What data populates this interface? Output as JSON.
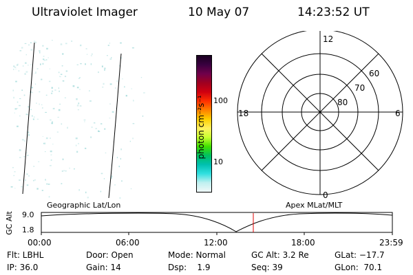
{
  "header": {
    "instrument": "Ultraviolet Imager",
    "date": "10 May 07",
    "time": "14:23:52 UT"
  },
  "colorbar": {
    "label": "photon cm⁻²s⁻¹",
    "ticks": [
      "100",
      "10"
    ],
    "colors": [
      "#1a0020",
      "#3a0040",
      "#70004a",
      "#a00020",
      "#d00010",
      "#ff3000",
      "#ff8000",
      "#ffd000",
      "#fff060",
      "#c8ff30",
      "#40e000",
      "#00c060",
      "#00c0b0",
      "#30e0e0",
      "#c0f0f0",
      "#f0f8f8"
    ]
  },
  "polar": {
    "mlt_labels": {
      "top": "12",
      "left": "18",
      "right": "6",
      "bottom": "0"
    },
    "lat_labels": [
      "60",
      "70",
      "80"
    ]
  },
  "timeline": {
    "left_label": "Geographic Lat/Lon",
    "right_label": "Apex MLat/MLT",
    "y_axis_title": "GC Alt",
    "y_ticks": [
      "9.0",
      "1.8"
    ],
    "x_ticks": [
      "00:00",
      "06:00",
      "12:00",
      "18:00",
      "23:59"
    ]
  },
  "info": {
    "row1": {
      "flt": "Flt: LBHL",
      "door": "Door: Open",
      "mode": "Mode: Normal",
      "gc_alt": "GC Alt: 3.2 Re",
      "glat": "GLat: −17.7"
    },
    "row2": {
      "ip": "IP: 36.0",
      "gain": "Gain: 14",
      "dsp": "Dsp:    1.9",
      "seq": "Seq: 39",
      "glon": "GLon:  70.1"
    }
  },
  "colors": {
    "marker": "#e00000",
    "speckle": "#a8dcdc"
  }
}
